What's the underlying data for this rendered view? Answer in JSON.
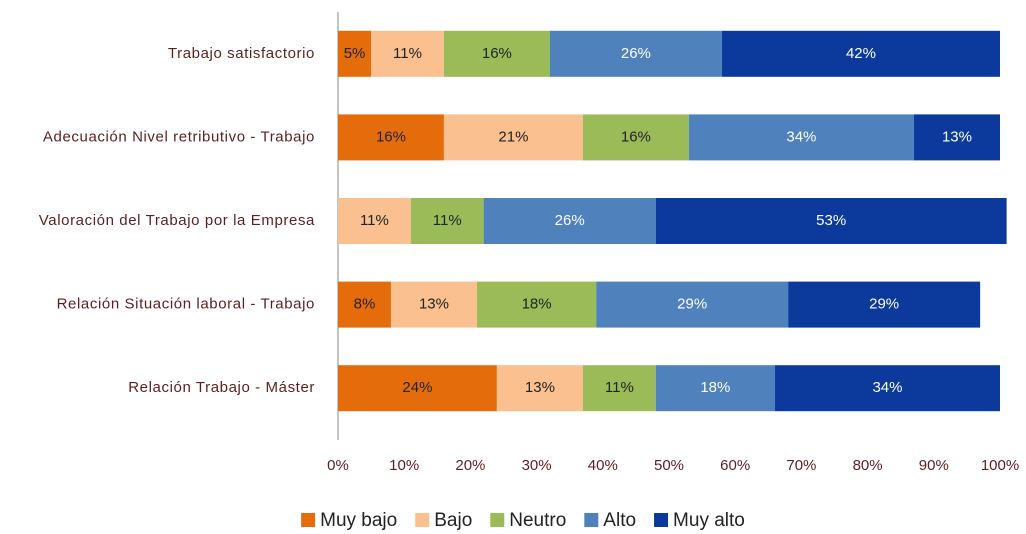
{
  "chart_data": {
    "type": "bar",
    "orientation": "horizontal",
    "stacked": true,
    "categories": [
      "Trabajo satisfactorio",
      "Adecuación Nivel retributivo - Trabajo",
      "Valoración del Trabajo por la Empresa",
      "Relación Situación laboral - Trabajo",
      "Relación Trabajo - Máster"
    ],
    "series": [
      {
        "name": "Muy bajo",
        "color": "#e46c0a",
        "label_color": "#222222",
        "values": [
          5,
          16,
          null,
          8,
          24
        ],
        "value_labels": [
          "5%",
          "16%",
          null,
          "8%",
          "24%"
        ]
      },
      {
        "name": "Bajo",
        "color": "#fac090",
        "label_color": "#222222",
        "values": [
          11,
          21,
          11,
          13,
          13
        ],
        "value_labels": [
          "11%",
          "21%",
          "11%",
          "13%",
          "13%"
        ]
      },
      {
        "name": "Neutro",
        "color": "#9bbb59",
        "label_color": "#222222",
        "values": [
          16,
          16,
          11,
          18,
          11
        ],
        "value_labels": [
          "16%",
          "16%",
          "11%",
          "18%",
          "11%"
        ]
      },
      {
        "name": "Alto",
        "color": "#4f81bd",
        "label_color": "#ffffff",
        "values": [
          26,
          34,
          26,
          29,
          18
        ],
        "value_labels": [
          "26%",
          "34%",
          "26%",
          "29%",
          "18%"
        ]
      },
      {
        "name": "Muy alto",
        "color": "#0b3a9c",
        "label_color": "#ffffff",
        "values": [
          42,
          13,
          53,
          29,
          34
        ],
        "value_labels": [
          "42%",
          "13%",
          "53%",
          "29%",
          "34%"
        ]
      }
    ],
    "xlim": [
      0,
      100
    ],
    "xticks": [
      {
        "value": 0,
        "label": "0%"
      },
      {
        "value": 10,
        "label": "10%"
      },
      {
        "value": 20,
        "label": "20%"
      },
      {
        "value": 30,
        "label": "30%"
      },
      {
        "value": 40,
        "label": "40%"
      },
      {
        "value": 50,
        "label": "50%"
      },
      {
        "value": 60,
        "label": "60%"
      },
      {
        "value": 70,
        "label": "70%"
      },
      {
        "value": 80,
        "label": "80%"
      },
      {
        "value": 90,
        "label": "90%"
      },
      {
        "value": 100,
        "label": "100%"
      }
    ],
    "legend": "bottom"
  }
}
